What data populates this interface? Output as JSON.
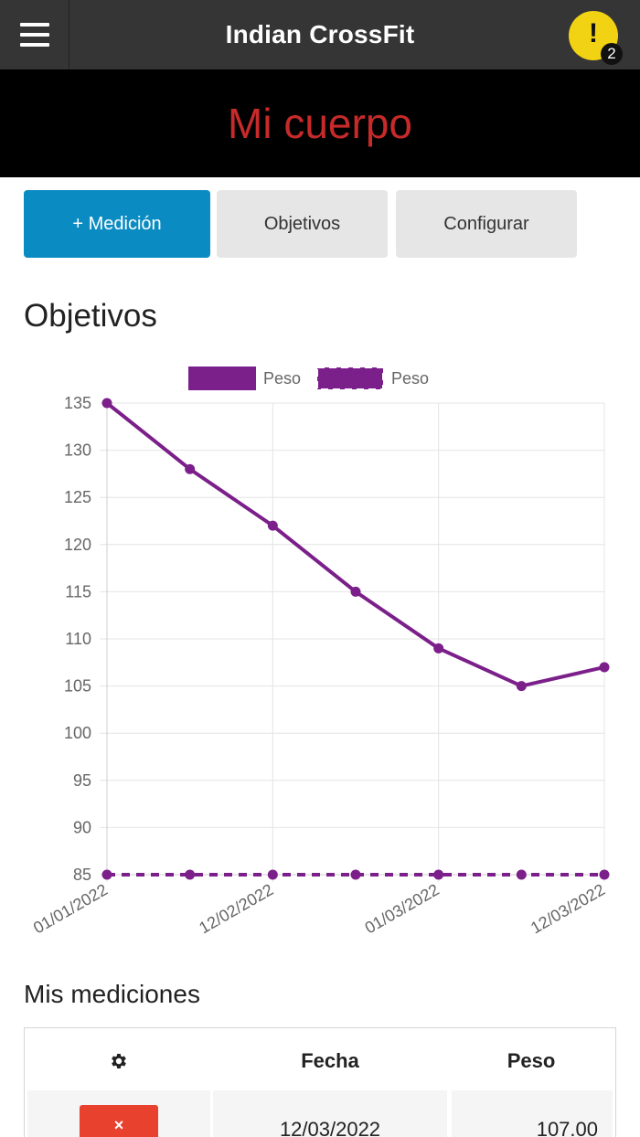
{
  "header": {
    "title": "Indian CrossFit",
    "alert_symbol": "!",
    "alert_count": "2",
    "menu_icon": "hamburger-menu-icon",
    "alert_icon": "exclamation-icon"
  },
  "hero": {
    "title": "Mi cuerpo"
  },
  "actions": {
    "add_label": "+ Medición",
    "objectives_label": "Objetivos",
    "configure_label": "Configurar"
  },
  "objectives_section": {
    "title": "Objetivos"
  },
  "chart_data": {
    "type": "line",
    "x": [
      "01/01/2022",
      "",
      "12/02/2022",
      "",
      "01/03/2022",
      "",
      "12/03/2022"
    ],
    "series": [
      {
        "name": "Peso",
        "style": "solid",
        "color": "#7b1f8a",
        "values": [
          135,
          128,
          122,
          115,
          109,
          105,
          107
        ]
      },
      {
        "name": "Peso",
        "style": "dashed",
        "color": "#7b1f8a",
        "values": [
          85,
          85,
          85,
          85,
          85,
          85,
          85
        ]
      }
    ],
    "ylim": [
      85,
      135
    ],
    "yticks": [
      135,
      130,
      125,
      120,
      115,
      110,
      105,
      100,
      95,
      90,
      85
    ],
    "grid": true,
    "legend": "top"
  },
  "measurements": {
    "title": "Mis mediciones",
    "settings_icon": "gear-icon",
    "columns": [
      "Fecha",
      "Peso"
    ],
    "rows": [
      {
        "delete_symbol": "×",
        "fecha": "12/03/2022",
        "peso": "107.00"
      }
    ]
  }
}
